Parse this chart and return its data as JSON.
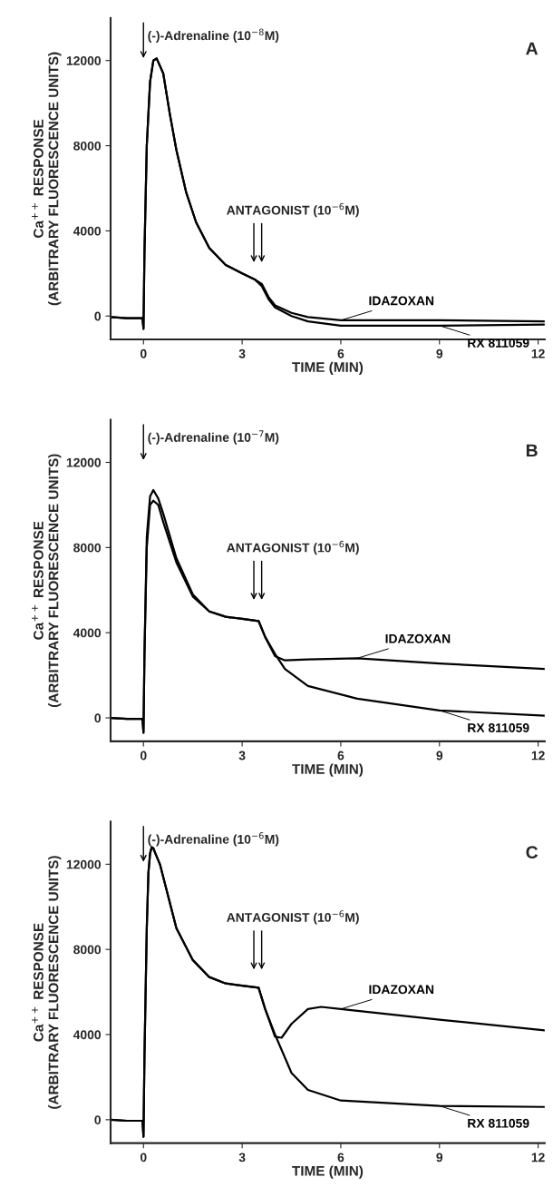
{
  "chart_data": [
    {
      "type": "line",
      "title": "A",
      "xlabel": "TIME (MIN)",
      "ylabel": "Ca$^{++}$ RESPONSE\n(ARBITRARY FLUORESCENCE UNITS)",
      "xlim": [
        -1,
        12.2
      ],
      "ylim": [
        -1100,
        14000
      ],
      "xticks": [
        0,
        3,
        6,
        9,
        12
      ],
      "yticks": [
        0,
        4000,
        8000,
        12000
      ],
      "grid": false,
      "legend": false,
      "line_style": "solid",
      "marker": "none",
      "annotations": [
        "(-)-Adrenaline (10$^{−8}$M)",
        "ANTAGONIST (10$^{−6}$M)"
      ],
      "series": [
        {
          "name": "IDAZOXAN",
          "color": "#000000",
          "x": [
            -1,
            -0.5,
            -0.03,
            0,
            0.03,
            0.1,
            0.2,
            0.3,
            0.4,
            0.6,
            0.8,
            1.0,
            1.3,
            1.6,
            2.0,
            2.5,
            3.0,
            3.4,
            3.6,
            3.8,
            4.0,
            4.5,
            5.0,
            6.0,
            9.0,
            12.2
          ],
          "values": [
            -50,
            -100,
            -100,
            -600,
            3000,
            8000,
            11000,
            12000,
            12100,
            11400,
            9500,
            7800,
            5800,
            4400,
            3200,
            2400,
            2000,
            1700,
            1500,
            900,
            500,
            150,
            -50,
            -200,
            -200,
            -250
          ]
        },
        {
          "name": "RX 811059",
          "color": "#000000",
          "x": [
            -1,
            -0.5,
            -0.03,
            0,
            0.03,
            0.1,
            0.2,
            0.3,
            0.4,
            0.6,
            0.8,
            1.0,
            1.3,
            1.6,
            2.0,
            2.5,
            3.0,
            3.4,
            3.6,
            3.8,
            4.0,
            4.5,
            5.0,
            6.0,
            9.0,
            12.2
          ],
          "values": [
            -50,
            -100,
            -100,
            -600,
            3000,
            8000,
            11000,
            12000,
            12100,
            11400,
            9500,
            7800,
            5800,
            4400,
            3200,
            2400,
            2000,
            1700,
            1400,
            800,
            400,
            0,
            -250,
            -450,
            -450,
            -400
          ]
        }
      ]
    },
    {
      "type": "line",
      "title": "B",
      "xlabel": "TIME (MIN)",
      "ylabel": "Ca$^{++}$ RESPONSE\n(ARBITRARY FLUORESCENCE UNITS)",
      "xlim": [
        -1,
        12.2
      ],
      "ylim": [
        -1100,
        14000
      ],
      "xticks": [
        0,
        3,
        6,
        9,
        12
      ],
      "yticks": [
        0,
        4000,
        8000,
        12000
      ],
      "grid": false,
      "legend": false,
      "line_style": "solid",
      "marker": "none",
      "annotations": [
        "(-)-Adrenaline (10$^{−7}$M)",
        "ANTAGONIST (10$^{−6}$M)"
      ],
      "series": [
        {
          "name": "IDAZOXAN",
          "color": "#000000",
          "x": [
            -1,
            -0.5,
            -0.03,
            0,
            0.03,
            0.1,
            0.2,
            0.3,
            0.45,
            0.6,
            1.0,
            1.5,
            2.0,
            2.5,
            3.0,
            3.5,
            3.7,
            4.0,
            4.3,
            5.0,
            6.5,
            9.0,
            12.2
          ],
          "values": [
            0,
            -50,
            -50,
            -700,
            3000,
            8500,
            10400,
            10700,
            10300,
            9600,
            7500,
            5800,
            5000,
            4750,
            4650,
            4550,
            3800,
            2900,
            2700,
            2750,
            2800,
            2550,
            2300
          ]
        },
        {
          "name": "RX 811059",
          "color": "#000000",
          "x": [
            -1,
            -0.5,
            -0.03,
            0,
            0.03,
            0.1,
            0.2,
            0.3,
            0.45,
            0.6,
            1.0,
            1.5,
            2.0,
            2.5,
            3.0,
            3.5,
            3.7,
            4.0,
            4.3,
            5.0,
            6.5,
            9.0,
            12.2
          ],
          "values": [
            0,
            -50,
            -50,
            -700,
            3000,
            8000,
            10000,
            10200,
            10000,
            9200,
            7300,
            5700,
            5000,
            4750,
            4650,
            4550,
            3800,
            3000,
            2300,
            1500,
            900,
            350,
            100
          ]
        }
      ]
    },
    {
      "type": "line",
      "title": "C",
      "xlabel": "TIME (MIN)",
      "ylabel": "Ca$^{++}$ RESPONSE\n(ARBITRARY FLUORESCENCE UNITS)",
      "xlim": [
        -1,
        12.2
      ],
      "ylim": [
        -1100,
        14000
      ],
      "xticks": [
        0,
        3,
        6,
        9,
        12
      ],
      "yticks": [
        0,
        4000,
        8000,
        12000
      ],
      "grid": false,
      "legend": false,
      "line_style": "solid",
      "marker": "none",
      "annotations": [
        "(-)-Adrenaline (10$^{−6}$M)",
        "ANTAGONIST (10$^{−6}$M)"
      ],
      "series": [
        {
          "name": "IDAZOXAN",
          "color": "#000000",
          "x": [
            -1,
            -0.5,
            -0.03,
            0,
            0.03,
            0.1,
            0.15,
            0.2,
            0.25,
            0.3,
            0.35,
            0.5,
            1.0,
            1.5,
            2.0,
            2.5,
            3.0,
            3.5,
            3.7,
            4.0,
            4.2,
            4.5,
            5.0,
            5.4,
            6.0,
            9.0,
            12.2
          ],
          "values": [
            0,
            -50,
            -50,
            -800,
            3000,
            9000,
            11600,
            12500,
            12800,
            12750,
            12550,
            12000,
            9000,
            7500,
            6700,
            6400,
            6300,
            6200,
            5200,
            3900,
            3850,
            4500,
            5200,
            5300,
            5200,
            4700,
            4200
          ]
        },
        {
          "name": "RX 811059",
          "color": "#000000",
          "x": [
            -1,
            -0.5,
            -0.03,
            0,
            0.03,
            0.1,
            0.15,
            0.2,
            0.25,
            0.3,
            0.35,
            0.5,
            1.0,
            1.5,
            2.0,
            2.5,
            3.0,
            3.5,
            3.7,
            4.0,
            4.5,
            5.0,
            6.0,
            9.0,
            12.2
          ],
          "values": [
            0,
            -50,
            -50,
            -800,
            3000,
            9000,
            11600,
            12500,
            12800,
            12750,
            12550,
            12000,
            9000,
            7500,
            6700,
            6400,
            6300,
            6200,
            5200,
            4000,
            2200,
            1400,
            900,
            650,
            600
          ]
        }
      ]
    }
  ]
}
